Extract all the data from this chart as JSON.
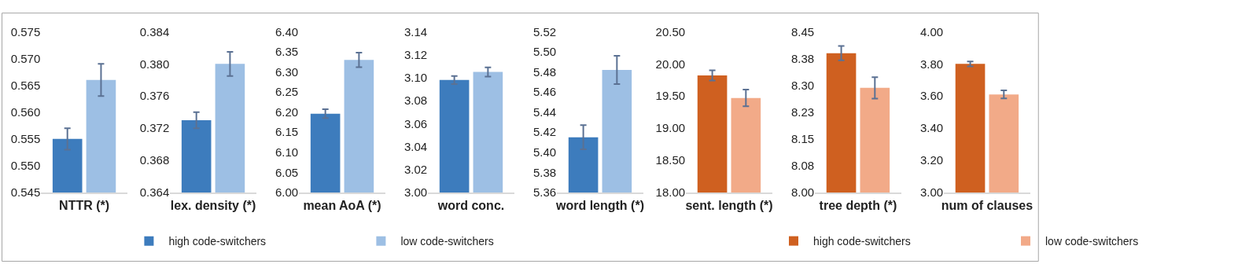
{
  "chart_data": [
    {
      "type": "bar",
      "xlabel": "NTTR (*)",
      "categories": [
        null
      ],
      "legend": "bottom",
      "ylim": [
        0.545,
        0.575
      ],
      "yticks": [
        0.545,
        {
          "value": 0.55,
          "label": "0.550"
        },
        0.555,
        {
          "value": 0.56,
          "label": "0.560"
        },
        0.565,
        {
          "value": 0.57,
          "label": "0.570"
        },
        0.575
      ],
      "series": [
        {
          "name": "high code-switchers",
          "color": "#3d7cbd",
          "values": [
            0.555
          ],
          "errors": [
            0.002
          ]
        },
        {
          "name": "low code-switchers",
          "color": "#9dbfe4",
          "values": [
            0.566
          ],
          "errors": [
            0.003
          ]
        }
      ]
    },
    {
      "type": "bar",
      "xlabel": "lex. density (*)",
      "categories": [
        null
      ],
      "ylim": [
        0.364,
        0.384
      ],
      "yticks": [
        0.364,
        0.368,
        0.372,
        0.376,
        {
          "value": 0.38,
          "label": "0.380"
        },
        0.384
      ],
      "series": [
        {
          "color": "#3d7cbd",
          "values": [
            0.373
          ],
          "errors": [
            0.001
          ]
        },
        {
          "color": "#9dbfe4",
          "values": [
            0.38
          ],
          "errors": [
            0.0015
          ]
        }
      ]
    },
    {
      "type": "bar",
      "xlabel": "mean AoA (*)",
      "categories": [
        null
      ],
      "ylim": [
        6.0,
        6.4
      ],
      "yticks": [
        {
          "value": 6.0,
          "label": "6.00"
        },
        {
          "value": 6.05,
          "label": "6.05"
        },
        {
          "value": 6.1,
          "label": "6.10"
        },
        {
          "value": 6.15,
          "label": "6.15"
        },
        {
          "value": 6.2,
          "label": "6.20"
        },
        {
          "value": 6.25,
          "label": "6.25"
        },
        {
          "value": 6.3,
          "label": "6.30"
        },
        {
          "value": 6.35,
          "label": "6.35"
        },
        {
          "value": 6.4,
          "label": "6.40"
        }
      ],
      "series": [
        {
          "color": "#3d7cbd",
          "values": [
            6.196
          ],
          "errors": [
            0.011
          ]
        },
        {
          "color": "#9dbfe4",
          "values": [
            6.33
          ],
          "errors": [
            0.018
          ]
        }
      ]
    },
    {
      "type": "bar",
      "xlabel": "word conc.",
      "categories": [
        null
      ],
      "ylim": [
        3.0,
        3.14
      ],
      "yticks": [
        {
          "value": 3.0,
          "label": "3.00"
        },
        3.02,
        3.04,
        3.06,
        3.08,
        {
          "value": 3.1,
          "label": "3.10"
        },
        3.12,
        3.14
      ],
      "series": [
        {
          "color": "#3d7cbd",
          "values": [
            3.098
          ],
          "errors": [
            0.0035
          ]
        },
        {
          "color": "#9dbfe4",
          "values": [
            3.105
          ],
          "errors": [
            0.004
          ]
        }
      ]
    },
    {
      "type": "bar",
      "xlabel": "word length (*)",
      "categories": [
        null
      ],
      "ylim": [
        5.36,
        5.52
      ],
      "yticks": [
        5.36,
        5.38,
        {
          "value": 5.4,
          "label": "5.40"
        },
        5.42,
        5.44,
        5.46,
        5.48,
        {
          "value": 5.5,
          "label": "5.50"
        },
        5.52
      ],
      "series": [
        {
          "color": "#3d7cbd",
          "values": [
            5.415
          ],
          "errors": [
            0.012
          ]
        },
        {
          "color": "#9dbfe4",
          "values": [
            5.482
          ],
          "errors": [
            0.014
          ]
        }
      ]
    },
    {
      "type": "bar",
      "xlabel": "sent. length (*)",
      "categories": [
        null
      ],
      "legend": "bottom",
      "ylim": [
        18.0,
        20.5
      ],
      "yticks": [
        {
          "value": 18.0,
          "label": "18.00"
        },
        {
          "value": 18.5,
          "label": "18.50"
        },
        {
          "value": 19.0,
          "label": "19.00"
        },
        {
          "value": 19.5,
          "label": "19.50"
        },
        {
          "value": 20.0,
          "label": "20.00"
        },
        {
          "value": 20.5,
          "label": "20.50"
        }
      ],
      "series": [
        {
          "name": "high code-switchers",
          "color": "#cf6020",
          "values": [
            19.82
          ],
          "errors": [
            0.08
          ]
        },
        {
          "name": "low code-switchers",
          "color": "#f2aa88",
          "values": [
            19.47
          ],
          "errors": [
            0.13
          ]
        }
      ]
    },
    {
      "type": "bar",
      "xlabel": "tree depth (*)",
      "categories": [
        null
      ],
      "ylim": [
        8.0,
        8.45
      ],
      "yticks": [
        {
          "value": 8.0,
          "label": "8.00"
        },
        {
          "value": 8.075,
          "label": "8.08"
        },
        {
          "value": 8.15,
          "label": "8.15"
        },
        {
          "value": 8.225,
          "label": "8.23"
        },
        {
          "value": 8.3,
          "label": "8.30"
        },
        {
          "value": 8.375,
          "label": "8.38"
        },
        {
          "value": 8.45,
          "label": "8.45"
        }
      ],
      "series": [
        {
          "color": "#cf6020",
          "values": [
            8.39
          ],
          "errors": [
            0.02
          ]
        },
        {
          "color": "#f2aa88",
          "values": [
            8.293
          ],
          "errors": [
            0.03
          ]
        }
      ]
    },
    {
      "type": "bar",
      "xlabel": "num of clauses",
      "categories": [
        null
      ],
      "ylim": [
        3.0,
        4.0
      ],
      "yticks": [
        {
          "value": 3.0,
          "label": "3.00"
        },
        {
          "value": 3.2,
          "label": "3.20"
        },
        {
          "value": 3.4,
          "label": "3.40"
        },
        {
          "value": 3.6,
          "label": "3.60"
        },
        {
          "value": 3.8,
          "label": "3.80"
        },
        {
          "value": 4.0,
          "label": "4.00"
        }
      ],
      "series": [
        {
          "color": "#cf6020",
          "values": [
            3.8
          ],
          "errors": [
            0.015
          ]
        },
        {
          "color": "#f2aa88",
          "values": [
            3.61
          ],
          "errors": [
            0.025
          ]
        }
      ]
    }
  ]
}
